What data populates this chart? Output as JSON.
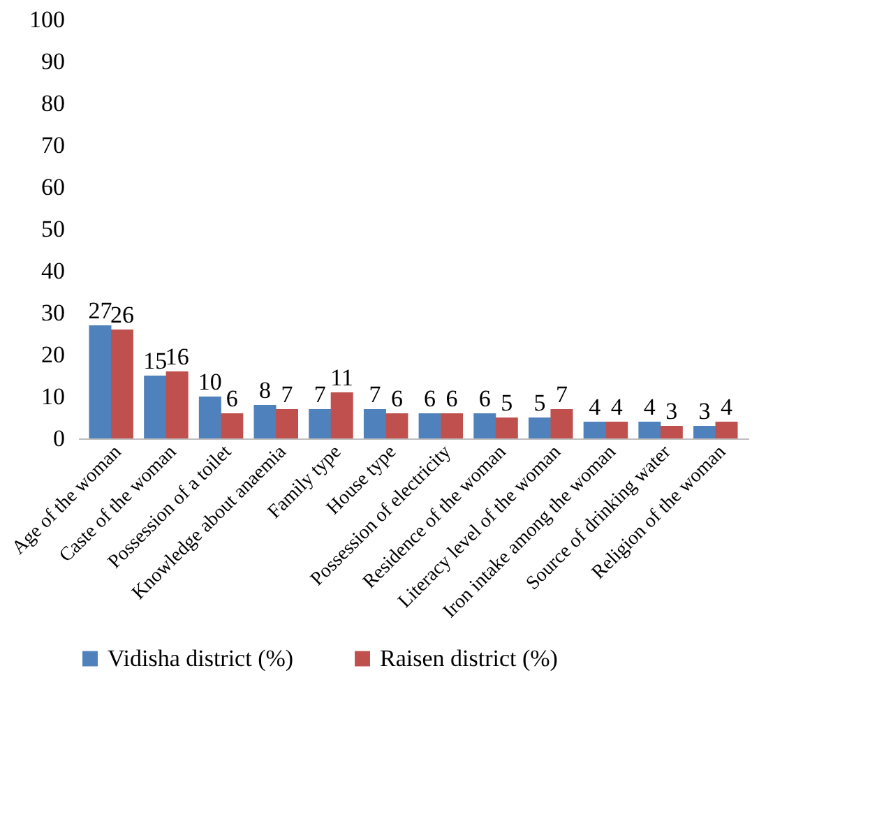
{
  "chart_data": {
    "type": "bar",
    "categories": [
      "Age of the woman",
      "Caste of the woman",
      "Possession of a toilet",
      "Knowledge about anaemia",
      "Family type",
      "House type",
      "Possession of electricity",
      "Residence of the woman",
      "Literacy level of the woman",
      "Iron intake among the woman",
      "Source of drinking water",
      "Religion of the woman"
    ],
    "series": [
      {
        "name": "Vidisha district (%)",
        "color": "#4f81bd",
        "values": [
          27,
          15,
          10,
          8,
          7,
          7,
          6,
          6,
          5,
          4,
          4,
          3
        ]
      },
      {
        "name": "Raisen district (%)",
        "color": "#c0504d",
        "values": [
          26,
          16,
          6,
          7,
          11,
          6,
          6,
          5,
          7,
          4,
          3,
          4
        ]
      }
    ],
    "ylim": [
      0,
      100
    ],
    "yticks": [
      0,
      10,
      20,
      30,
      40,
      50,
      60,
      70,
      80,
      90,
      100
    ],
    "grid": false,
    "legend": "bottom",
    "data_labels": true
  }
}
